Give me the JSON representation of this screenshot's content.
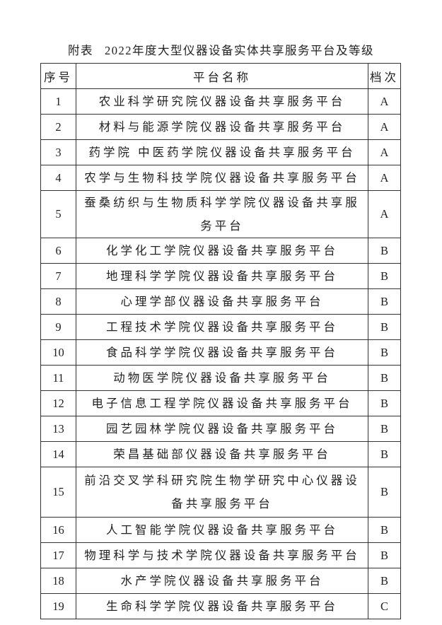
{
  "title": {
    "prefix": "附表",
    "text": "2022年度大型仪器设备实体共享服务平台及等级"
  },
  "table": {
    "headers": [
      "序号",
      "平台名称",
      "档次"
    ],
    "rows": [
      {
        "no": "1",
        "name": "农业科学研究院仪器设备共享服务平台",
        "grade": "A"
      },
      {
        "no": "2",
        "name": "材料与能源学院仪器设备共享服务平台",
        "grade": "A"
      },
      {
        "no": "3",
        "name": "药学院 中医药学院仪器设备共享服务平台",
        "grade": "A"
      },
      {
        "no": "4",
        "name": "农学与生物科技学院仪器设备共享服务平台",
        "grade": "A"
      },
      {
        "no": "5",
        "name": "蚕桑纺织与生物质科学学院仪器设备共享服务平台",
        "grade": "A"
      },
      {
        "no": "6",
        "name": "化学化工学院仪器设备共享服务平台",
        "grade": "B"
      },
      {
        "no": "7",
        "name": "地理科学学院仪器设备共享服务平台",
        "grade": "B"
      },
      {
        "no": "8",
        "name": "心理学部仪器设备共享服务平台",
        "grade": "B"
      },
      {
        "no": "9",
        "name": "工程技术学院仪器设备共享服务平台",
        "grade": "B"
      },
      {
        "no": "10",
        "name": "食品科学学院仪器设备共享服务平台",
        "grade": "B"
      },
      {
        "no": "11",
        "name": "动物医学院仪器设备共享服务平台",
        "grade": "B"
      },
      {
        "no": "12",
        "name": "电子信息工程学院仪器设备共享服务平台",
        "grade": "B"
      },
      {
        "no": "13",
        "name": "园艺园林学院仪器设备共享服务平台",
        "grade": "B"
      },
      {
        "no": "14",
        "name": "荣昌基础部仪器设备共享服务平台",
        "grade": "B"
      },
      {
        "no": "15",
        "name": "前沿交叉学科研究院生物学研究中心仪器设备共享服务平台",
        "grade": "B"
      },
      {
        "no": "16",
        "name": "人工智能学院仪器设备共享服务平台",
        "grade": "B"
      },
      {
        "no": "17",
        "name": "物理科学与技术学院仪器设备共享服务平台",
        "grade": "B"
      },
      {
        "no": "18",
        "name": "水产学院仪器设备共享服务平台",
        "grade": "B"
      },
      {
        "no": "19",
        "name": "生命科学学院仪器设备共享服务平台",
        "grade": "C"
      }
    ]
  }
}
